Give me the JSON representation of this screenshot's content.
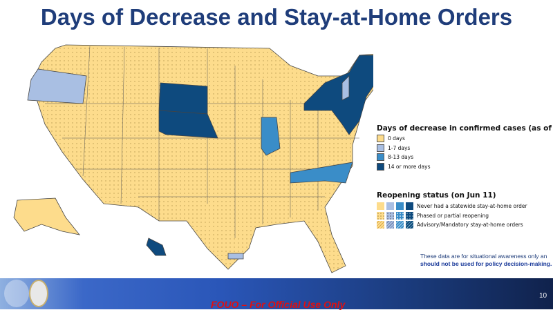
{
  "title": "Days of Decrease and Stay-at-Home Orders",
  "legend_days": {
    "title": "Days of decrease in confirmed cases (as of Jun",
    "items": [
      {
        "label": "0 days",
        "color": "#fddc8c"
      },
      {
        "label": "1-7 days",
        "color": "#a9bfe3"
      },
      {
        "label": "8-13 days",
        "color": "#3a8dc8"
      },
      {
        "label": "14 or more days",
        "color": "#0e4a7e"
      }
    ]
  },
  "legend_reopen": {
    "title": "Reopening status (on Jun 11)",
    "items": [
      {
        "label": "Never had a statewide stay-at-home order",
        "pattern": "solid"
      },
      {
        "label": "Phased or partial reopening",
        "pattern": "dots"
      },
      {
        "label": "Advisory/Mandatory stay-at-home orders",
        "pattern": "stripes"
      }
    ]
  },
  "note": {
    "line1": "These data are for situational awareness only an",
    "line2": "should not be used for policy decision-making."
  },
  "footer": {
    "fouo": "FOUO – For Official Use Only",
    "page": "10"
  }
}
